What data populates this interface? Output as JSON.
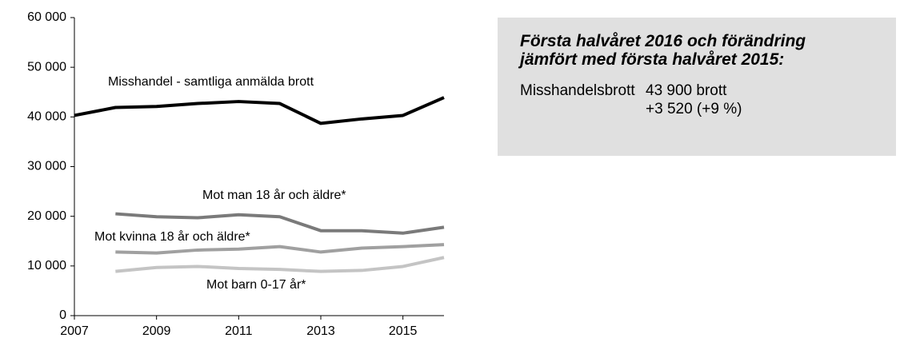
{
  "chart_data": {
    "type": "line",
    "x": [
      2007,
      2008,
      2009,
      2010,
      2011,
      2012,
      2013,
      2014,
      2015,
      2016
    ],
    "xlim": [
      2007,
      2016
    ],
    "xticks": [
      2007,
      2009,
      2011,
      2013,
      2015
    ],
    "ylim": [
      0,
      60000
    ],
    "yticks": [
      0,
      {
        "value": 10000,
        "label": "10 000"
      },
      {
        "value": 20000,
        "label": "20 000"
      },
      {
        "value": 30000,
        "label": "30 000"
      },
      {
        "value": 40000,
        "label": "40 000"
      },
      {
        "value": 50000,
        "label": "50 000"
      },
      {
        "value": 60000,
        "label": "60 000"
      }
    ],
    "grid": false,
    "series": [
      {
        "name": "Misshandel - samtliga anmälda brott",
        "color": "#000000",
        "values": [
          40300,
          41900,
          42100,
          42700,
          43100,
          42700,
          38700,
          39600,
          40300,
          43900
        ]
      },
      {
        "name": "Mot man 18 år och äldre*",
        "color": "#7a7a7a",
        "values": [
          null,
          20500,
          19900,
          19700,
          20300,
          19900,
          17100,
          17100,
          16600,
          17800
        ]
      },
      {
        "name": "Mot kvinna 18 år och äldre*",
        "color": "#a0a0a0",
        "values": [
          null,
          12800,
          12600,
          13200,
          13400,
          13900,
          12800,
          13600,
          13900,
          14300
        ]
      },
      {
        "name": "Mot barn 0-17 år*",
        "color": "#c4c4c4",
        "values": [
          null,
          8900,
          9700,
          9900,
          9500,
          9300,
          8900,
          9100,
          9900,
          11700
        ]
      }
    ]
  },
  "info_box": {
    "title_lines": [
      "Första halvåret 2016 och förändring",
      "jämfört med första halvåret 2015:"
    ],
    "label": "Misshandelsbrott",
    "lines": [
      "43 900 brott",
      "+3 520 (+9 %)"
    ]
  }
}
